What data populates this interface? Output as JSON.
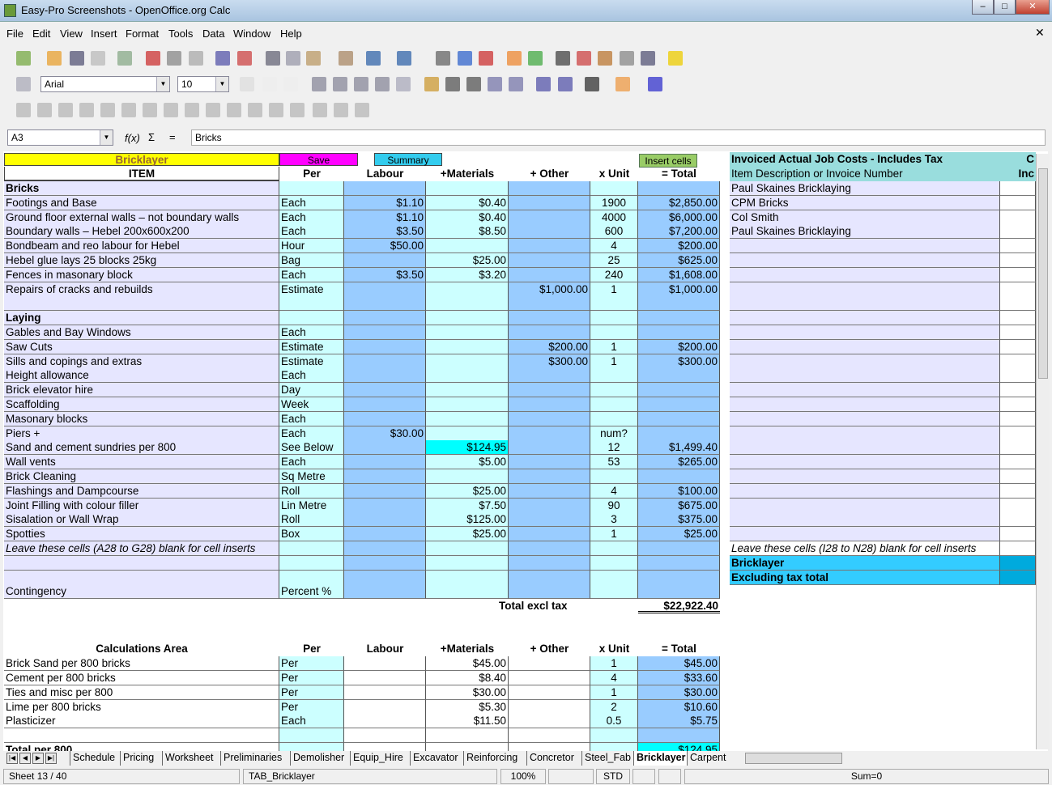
{
  "window": {
    "title": "Easy-Pro Screenshots - OpenOffice.org Calc"
  },
  "menu": [
    "File",
    "Edit",
    "View",
    "Insert",
    "Format",
    "Tools",
    "Data",
    "Window",
    "Help"
  ],
  "toolbar": {
    "font": "Arial",
    "size": "10"
  },
  "formula": {
    "cellref": "A3",
    "content": "Bricks",
    "fx": "f(x)",
    "sum": "Σ",
    "eq": "="
  },
  "buttons": {
    "bricklayer": "Bricklayer",
    "save": "Save",
    "summary": "Summary",
    "insert_cells": "Insert cells"
  },
  "colors": {
    "yellow": "#ffff00",
    "magenta": "#ff00ff",
    "cyan": "#33ccee",
    "light_cyan": "#ccffff",
    "blue": "#99ccff",
    "lavender": "#e6e6ff",
    "teal": "#99dddd",
    "green_btn": "#99cc66"
  },
  "headers": [
    "ITEM",
    "Per",
    "Labour",
    "+Materials",
    "+ Other",
    "x Unit",
    "= Total"
  ],
  "rows": [
    [
      "Bricks",
      "",
      "",
      "",
      "",
      "",
      ""
    ],
    [
      "Footings and Base",
      "Each",
      "$1.10",
      "$0.40",
      "",
      "1900",
      "$2,850.00"
    ],
    [
      "Ground floor external walls – not boundary walls",
      "Each",
      "$1.10",
      "$0.40",
      "",
      "4000",
      "$6,000.00"
    ],
    [
      "Boundary walls  – Hebel 200x600x200",
      "Each",
      "$3.50",
      "$8.50",
      "",
      "600",
      "$7,200.00"
    ],
    [
      "Bondbeam and reo labour for Hebel",
      "Hour",
      "$50.00",
      "",
      "",
      "4",
      "$200.00"
    ],
    [
      "Hebel glue  lays 25 blocks 25kg",
      "Bag",
      "",
      "$25.00",
      "",
      "25",
      "$625.00"
    ],
    [
      "Fences in masonary block",
      "Each",
      "$3.50",
      "$3.20",
      "",
      "240",
      "$1,608.00"
    ],
    [
      "Repairs of cracks and rebuilds",
      "Estimate",
      "",
      "",
      "$1,000.00",
      "1",
      "$1,000.00"
    ],
    [
      "",
      "",
      "",
      "",
      "",
      "",
      ""
    ],
    [
      "Laying",
      "",
      "",
      "",
      "",
      "",
      ""
    ],
    [
      "Gables and Bay Windows",
      "Each",
      "",
      "",
      "",
      "",
      ""
    ],
    [
      "Saw Cuts",
      "Estimate",
      "",
      "",
      "$200.00",
      "1",
      "$200.00"
    ],
    [
      "Sills and copings and extras",
      "Estimate",
      "",
      "",
      "$300.00",
      "1",
      "$300.00"
    ],
    [
      "Height allowance",
      "Each",
      "",
      "",
      "",
      "",
      ""
    ],
    [
      "Brick elevator hire",
      "Day",
      "",
      "",
      "",
      "",
      ""
    ],
    [
      "Scaffolding",
      "Week",
      "",
      "",
      "",
      "",
      ""
    ],
    [
      "Masonary blocks",
      "Each",
      "",
      "",
      "",
      "",
      ""
    ],
    [
      "Piers +",
      "Each",
      "$30.00",
      "",
      "",
      "num?",
      ""
    ],
    [
      "Sand and cement sundries per 800",
      "See Below",
      "",
      "$124.95",
      "",
      "12",
      "$1,499.40"
    ],
    [
      "Wall vents",
      "Each",
      "",
      "$5.00",
      "",
      "53",
      "$265.00"
    ],
    [
      "Brick Cleaning",
      "Sq Metre",
      "",
      "",
      "",
      "",
      ""
    ],
    [
      "Flashings and Dampcourse",
      "Roll",
      "",
      "$25.00",
      "",
      "4",
      "$100.00"
    ],
    [
      "Joint Filling with colour filler",
      "Lin Metre",
      "",
      "$7.50",
      "",
      "90",
      "$675.00"
    ],
    [
      "Sisalation or Wall Wrap",
      "Roll",
      "",
      "$125.00",
      "",
      "3",
      "$375.00"
    ],
    [
      "Spotties",
      "Box",
      "",
      "$25.00",
      "",
      "1",
      "$25.00"
    ],
    [
      "Leave these cells (A28 to G28) blank for cell inserts",
      "",
      "",
      "",
      "",
      "",
      ""
    ],
    [
      "",
      "",
      "",
      "",
      "",
      "",
      ""
    ],
    [
      "",
      "",
      "",
      "",
      "",
      "",
      ""
    ],
    [
      "Contingency",
      "Percent %",
      "",
      "",
      "",
      "",
      ""
    ]
  ],
  "total": {
    "label": "Total excl tax",
    "value": "$22,922.40"
  },
  "calc": {
    "headers": [
      "Calculations Area",
      "Per",
      "Labour",
      "+Materials",
      "+ Other",
      "x Unit",
      "= Total"
    ],
    "rows": [
      [
        "Brick Sand per 800 bricks",
        "Per",
        "",
        "$45.00",
        "",
        "1",
        "$45.00"
      ],
      [
        "Cement per 800 bricks",
        "Per",
        "",
        "$8.40",
        "",
        "4",
        "$33.60"
      ],
      [
        "Ties and misc per 800",
        "Per",
        "",
        "$30.00",
        "",
        "1",
        "$30.00"
      ],
      [
        "Lime per 800 bricks",
        "Per",
        "",
        "$5.30",
        "",
        "2",
        "$10.60"
      ],
      [
        "Plasticizer",
        "Each",
        "",
        "$11.50",
        "",
        "0.5",
        "$5.75"
      ],
      [
        "",
        "",
        "",
        "",
        "",
        "",
        ""
      ],
      [
        "Total per 800",
        "",
        "",
        "",
        "",
        "",
        "$124.95"
      ]
    ]
  },
  "invoice": {
    "title": "Invoiced Actual Job Costs - Includes Tax",
    "col2_title": "C",
    "subtitle": "Item Description or Invoice Number",
    "col2_sub": "Inc",
    "items": [
      "Paul Skaines Bricklaying",
      "CPM Bricks",
      "Col Smith",
      "Paul Skaines Bricklaying",
      "",
      "",
      "",
      "",
      "",
      "",
      "",
      "",
      "",
      "",
      "",
      "",
      "",
      "",
      "",
      "",
      "",
      "",
      "",
      "",
      "",
      ""
    ],
    "note": "Leave these cells (I28 to N28) blank for cell inserts",
    "bricklayer": "Bricklayer",
    "excl": "Excluding tax total"
  },
  "tabs": [
    "Schedule",
    "Pricing",
    "Worksheet",
    "Preliminaries",
    "Demolisher",
    "Equip_Hire",
    "Excavator",
    "Reinforcing",
    "Concretor",
    "Steel_Fab",
    "Bricklayer",
    "Carpent"
  ],
  "active_tab": "Bricklayer",
  "status": {
    "sheet": "Sheet 13 / 40",
    "style": "TAB_Bricklayer",
    "zoom": "100%",
    "mode": "STD",
    "sum": "Sum=0"
  }
}
